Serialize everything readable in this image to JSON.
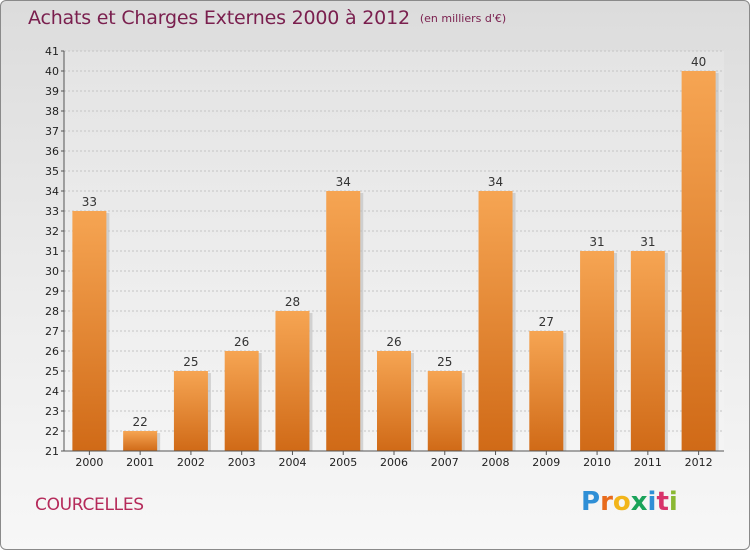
{
  "header": {
    "title": "Achats et Charges Externes 2000 à 2012",
    "subtitle": "(en milliers d'€)"
  },
  "footer": {
    "commune": "COURCELLES",
    "logo_letters": [
      "P",
      "r",
      "o",
      "x",
      "i",
      "t",
      "i"
    ],
    "logo_colors": [
      "#2f8fd6",
      "#e86b1c",
      "#f2b51a",
      "#1aa35a",
      "#2f8fd6",
      "#d8336b",
      "#8ab833"
    ]
  },
  "chart_data": {
    "type": "bar",
    "categories": [
      "2000",
      "2001",
      "2002",
      "2003",
      "2004",
      "2005",
      "2006",
      "2007",
      "2008",
      "2009",
      "2010",
      "2011",
      "2012"
    ],
    "values": [
      33,
      22,
      25,
      26,
      28,
      34,
      26,
      25,
      34,
      27,
      31,
      31,
      40
    ],
    "data_labels": [
      "33",
      "22",
      "25",
      "26",
      "28",
      "34",
      "26",
      "25",
      "34",
      "27",
      "31",
      "31",
      "40"
    ],
    "ylim": [
      21,
      41
    ],
    "yticks": [
      21,
      22,
      23,
      24,
      25,
      26,
      27,
      28,
      29,
      30,
      31,
      32,
      33,
      34,
      35,
      36,
      37,
      38,
      39,
      40,
      41
    ],
    "grid": true,
    "bar_color_top": "#f6a553",
    "bar_color_bottom": "#d06a17",
    "xlabel": "",
    "ylabel": ""
  }
}
